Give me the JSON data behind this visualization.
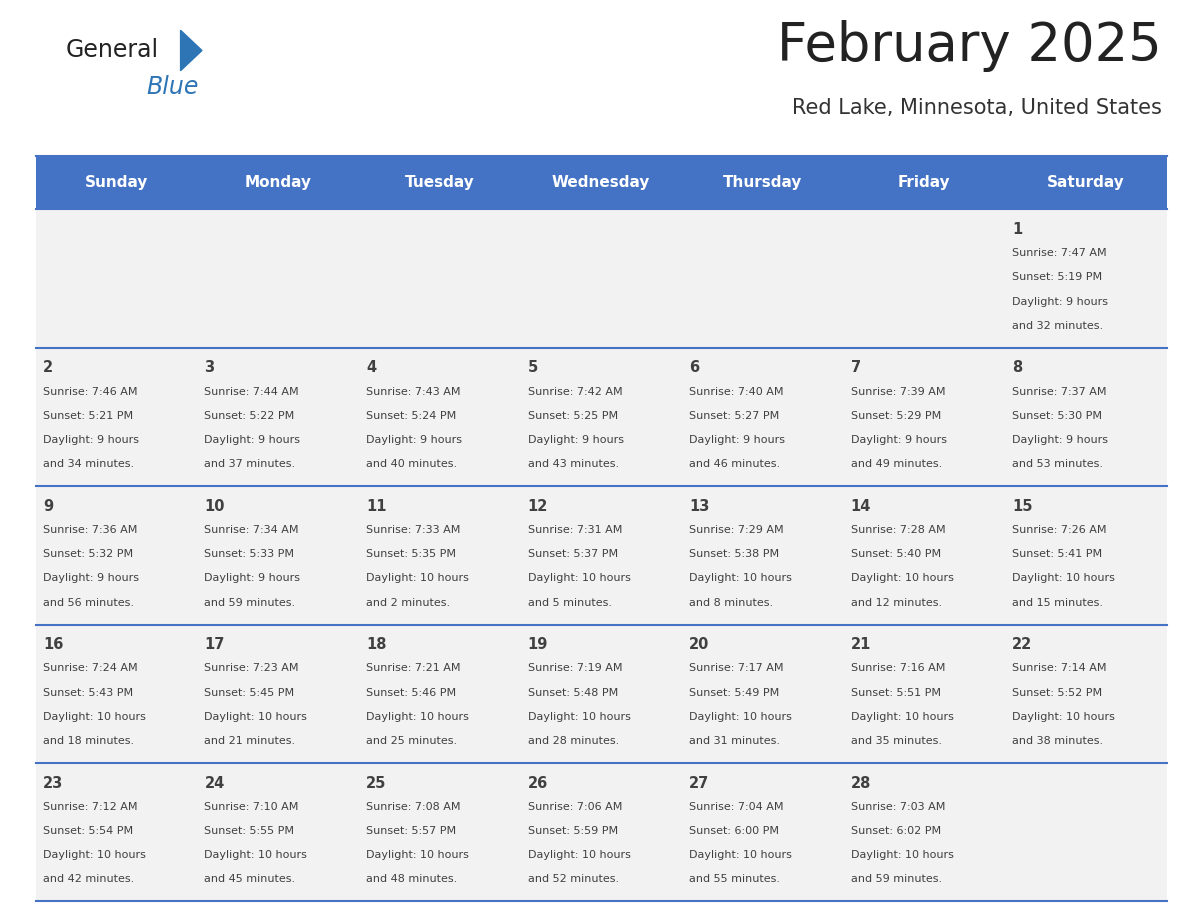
{
  "title": "February 2025",
  "subtitle": "Red Lake, Minnesota, United States",
  "header_bg": "#4472C4",
  "header_text_color": "#FFFFFF",
  "day_names": [
    "Sunday",
    "Monday",
    "Tuesday",
    "Wednesday",
    "Thursday",
    "Friday",
    "Saturday"
  ],
  "row_bg": "#F2F2F2",
  "cell_border_color": "#4472C4",
  "text_color": "#404040",
  "title_color": "#333333",
  "weeks": [
    [
      {
        "day": null,
        "sunrise": null,
        "sunset": null,
        "daylight": null
      },
      {
        "day": null,
        "sunrise": null,
        "sunset": null,
        "daylight": null
      },
      {
        "day": null,
        "sunrise": null,
        "sunset": null,
        "daylight": null
      },
      {
        "day": null,
        "sunrise": null,
        "sunset": null,
        "daylight": null
      },
      {
        "day": null,
        "sunrise": null,
        "sunset": null,
        "daylight": null
      },
      {
        "day": null,
        "sunrise": null,
        "sunset": null,
        "daylight": null
      },
      {
        "day": 1,
        "sunrise": "7:47 AM",
        "sunset": "5:19 PM",
        "daylight": "9 hours\nand 32 minutes."
      }
    ],
    [
      {
        "day": 2,
        "sunrise": "7:46 AM",
        "sunset": "5:21 PM",
        "daylight": "9 hours\nand 34 minutes."
      },
      {
        "day": 3,
        "sunrise": "7:44 AM",
        "sunset": "5:22 PM",
        "daylight": "9 hours\nand 37 minutes."
      },
      {
        "day": 4,
        "sunrise": "7:43 AM",
        "sunset": "5:24 PM",
        "daylight": "9 hours\nand 40 minutes."
      },
      {
        "day": 5,
        "sunrise": "7:42 AM",
        "sunset": "5:25 PM",
        "daylight": "9 hours\nand 43 minutes."
      },
      {
        "day": 6,
        "sunrise": "7:40 AM",
        "sunset": "5:27 PM",
        "daylight": "9 hours\nand 46 minutes."
      },
      {
        "day": 7,
        "sunrise": "7:39 AM",
        "sunset": "5:29 PM",
        "daylight": "9 hours\nand 49 minutes."
      },
      {
        "day": 8,
        "sunrise": "7:37 AM",
        "sunset": "5:30 PM",
        "daylight": "9 hours\nand 53 minutes."
      }
    ],
    [
      {
        "day": 9,
        "sunrise": "7:36 AM",
        "sunset": "5:32 PM",
        "daylight": "9 hours\nand 56 minutes."
      },
      {
        "day": 10,
        "sunrise": "7:34 AM",
        "sunset": "5:33 PM",
        "daylight": "9 hours\nand 59 minutes."
      },
      {
        "day": 11,
        "sunrise": "7:33 AM",
        "sunset": "5:35 PM",
        "daylight": "10 hours\nand 2 minutes."
      },
      {
        "day": 12,
        "sunrise": "7:31 AM",
        "sunset": "5:37 PM",
        "daylight": "10 hours\nand 5 minutes."
      },
      {
        "day": 13,
        "sunrise": "7:29 AM",
        "sunset": "5:38 PM",
        "daylight": "10 hours\nand 8 minutes."
      },
      {
        "day": 14,
        "sunrise": "7:28 AM",
        "sunset": "5:40 PM",
        "daylight": "10 hours\nand 12 minutes."
      },
      {
        "day": 15,
        "sunrise": "7:26 AM",
        "sunset": "5:41 PM",
        "daylight": "10 hours\nand 15 minutes."
      }
    ],
    [
      {
        "day": 16,
        "sunrise": "7:24 AM",
        "sunset": "5:43 PM",
        "daylight": "10 hours\nand 18 minutes."
      },
      {
        "day": 17,
        "sunrise": "7:23 AM",
        "sunset": "5:45 PM",
        "daylight": "10 hours\nand 21 minutes."
      },
      {
        "day": 18,
        "sunrise": "7:21 AM",
        "sunset": "5:46 PM",
        "daylight": "10 hours\nand 25 minutes."
      },
      {
        "day": 19,
        "sunrise": "7:19 AM",
        "sunset": "5:48 PM",
        "daylight": "10 hours\nand 28 minutes."
      },
      {
        "day": 20,
        "sunrise": "7:17 AM",
        "sunset": "5:49 PM",
        "daylight": "10 hours\nand 31 minutes."
      },
      {
        "day": 21,
        "sunrise": "7:16 AM",
        "sunset": "5:51 PM",
        "daylight": "10 hours\nand 35 minutes."
      },
      {
        "day": 22,
        "sunrise": "7:14 AM",
        "sunset": "5:52 PM",
        "daylight": "10 hours\nand 38 minutes."
      }
    ],
    [
      {
        "day": 23,
        "sunrise": "7:12 AM",
        "sunset": "5:54 PM",
        "daylight": "10 hours\nand 42 minutes."
      },
      {
        "day": 24,
        "sunrise": "7:10 AM",
        "sunset": "5:55 PM",
        "daylight": "10 hours\nand 45 minutes."
      },
      {
        "day": 25,
        "sunrise": "7:08 AM",
        "sunset": "5:57 PM",
        "daylight": "10 hours\nand 48 minutes."
      },
      {
        "day": 26,
        "sunrise": "7:06 AM",
        "sunset": "5:59 PM",
        "daylight": "10 hours\nand 52 minutes."
      },
      {
        "day": 27,
        "sunrise": "7:04 AM",
        "sunset": "6:00 PM",
        "daylight": "10 hours\nand 55 minutes."
      },
      {
        "day": 28,
        "sunrise": "7:03 AM",
        "sunset": "6:02 PM",
        "daylight": "10 hours\nand 59 minutes."
      },
      {
        "day": null,
        "sunrise": null,
        "sunset": null,
        "daylight": null
      }
    ]
  ],
  "fig_width": 11.88,
  "fig_height": 9.18,
  "dpi": 100
}
